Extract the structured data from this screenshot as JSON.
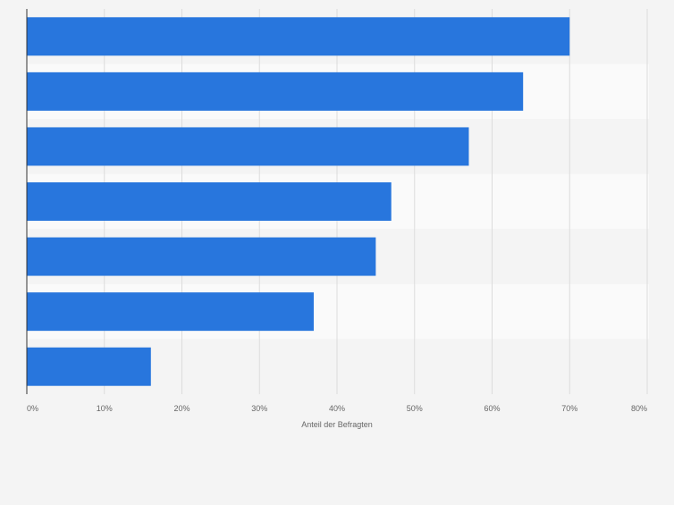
{
  "chart_data": {
    "type": "bar",
    "orientation": "horizontal",
    "categories": [
      "",
      "",
      "",
      "",
      "",
      "",
      ""
    ],
    "values": [
      70,
      64,
      57,
      47,
      45,
      37,
      16
    ],
    "title": "",
    "xlabel": "Anteil der Befragten",
    "ylabel": "",
    "xlim": [
      0,
      80
    ],
    "x_ticks": [
      0,
      10,
      20,
      30,
      40,
      50,
      60,
      70,
      80
    ],
    "x_tick_labels": [
      "0%",
      "10%",
      "20%",
      "30%",
      "40%",
      "50%",
      "60%",
      "70%",
      "80%"
    ],
    "grid": true,
    "bar_color": "#2876dd",
    "band_colors": [
      "#f4f4f4",
      "#fafafa"
    ]
  }
}
